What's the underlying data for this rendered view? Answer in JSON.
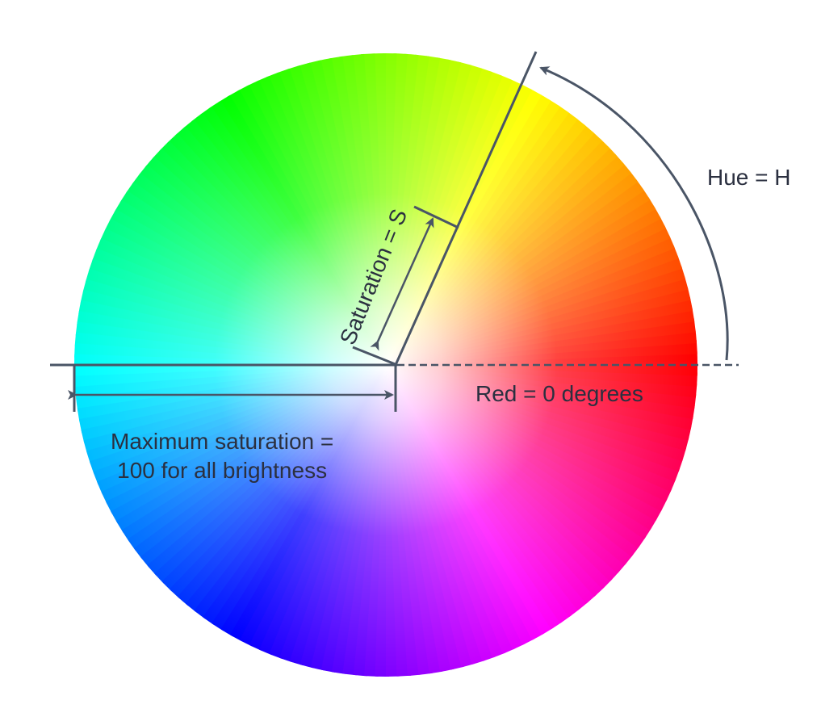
{
  "labels": {
    "hue": "Hue = H",
    "saturation": "Saturation = S",
    "red_zero": "Red = 0 degrees",
    "max_saturation_line1": "Maximum saturation =",
    "max_saturation_line2": "100 for all brightness"
  },
  "colors": {
    "annotation_stroke": "#4a5566",
    "text": "#2b3040",
    "wheel_red": "#ff0000",
    "wheel_yellow": "#ffff00",
    "wheel_green": "#00ff00",
    "wheel_cyan": "#00ffff",
    "wheel_blue": "#0000ff",
    "wheel_magenta": "#ff00ff"
  },
  "hue_wheel": {
    "hue_angle_degrees": 68,
    "hue_zero_label": "Red = 0 degrees"
  }
}
